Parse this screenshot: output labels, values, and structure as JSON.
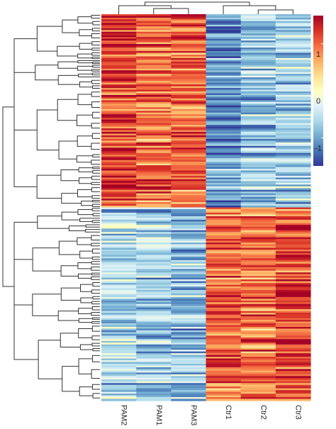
{
  "chart_data": {
    "type": "heatmap",
    "title": "",
    "xlabel": "",
    "ylabel": "",
    "columns": [
      "PAM2",
      "PAM1",
      "PAM3",
      "Ctr1",
      "Ctr2",
      "Ctr3"
    ],
    "column_groups": [
      {
        "members": [
          "PAM2",
          "PAM1",
          "PAM3"
        ]
      },
      {
        "members": [
          "Ctr1",
          "Ctr2",
          "Ctr3"
        ]
      }
    ],
    "row_clusters": [
      {
        "row_share": 0.5,
        "profile": [
          1.2,
          1.0,
          1.0,
          -1.1,
          -0.8,
          -0.7
        ]
      },
      {
        "row_share": 0.5,
        "profile": [
          -0.6,
          -0.7,
          -0.8,
          1.0,
          0.9,
          1.1
        ]
      }
    ],
    "colorbar": {
      "min": -1.6,
      "max": 1.6,
      "ticks": [
        1,
        0,
        -1
      ],
      "tick_labels": [
        "1",
        "0",
        "-1"
      ],
      "colors": [
        "#313695",
        "#4575b4",
        "#74add1",
        "#abd9e9",
        "#e0f3f8",
        "#ffffbf",
        "#fee090",
        "#fdae61",
        "#f46d43",
        "#d73027",
        "#a50026"
      ]
    },
    "row_dendrogram": true,
    "column_dendrogram": true,
    "grid": false,
    "legend_position": "right"
  }
}
